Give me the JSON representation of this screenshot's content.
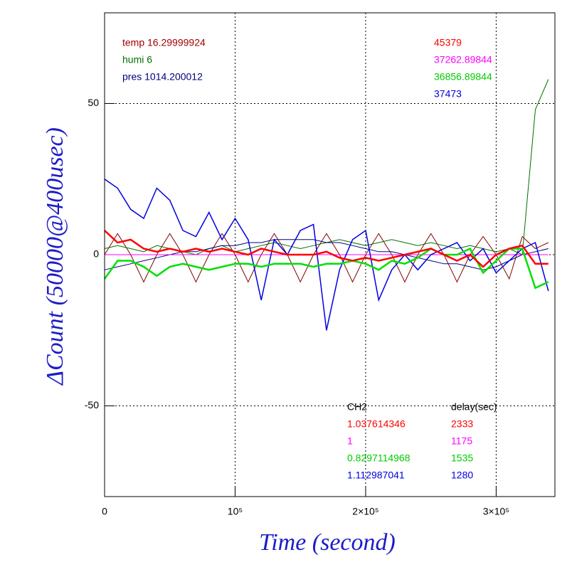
{
  "chart_data": {
    "type": "line",
    "x_label": "Time (second)",
    "y_label": "ΔCount (50000@400usec)",
    "xlim": [
      0,
      345000
    ],
    "ylim": [
      -80,
      80
    ],
    "xticks": [
      0,
      {
        "value": 100000,
        "label": "10⁵"
      },
      {
        "value": 200000,
        "label": "2×10⁵"
      },
      {
        "value": 300000,
        "label": "3×10⁵"
      }
    ],
    "yticks": [
      -50,
      0,
      50
    ],
    "grid": true,
    "x": [
      0,
      10000,
      20000,
      30000,
      40000,
      50000,
      60000,
      70000,
      80000,
      90000,
      100000,
      110000,
      120000,
      130000,
      140000,
      150000,
      160000,
      170000,
      180000,
      190000,
      200000,
      210000,
      220000,
      230000,
      240000,
      250000,
      260000,
      270000,
      280000,
      290000,
      300000,
      310000,
      320000,
      330000,
      340000
    ],
    "series": [
      {
        "color": "#800000",
        "width": 1,
        "values": [
          0,
          7,
          0,
          -9,
          0,
          7,
          0,
          -9,
          0,
          7,
          0,
          -9,
          0,
          7,
          0,
          -9,
          0,
          7,
          0,
          -9,
          0,
          7,
          0,
          -9,
          0,
          7,
          0,
          -9,
          0,
          6,
          0,
          -8,
          6,
          2,
          4
        ]
      },
      {
        "color": "#007000",
        "width": 1,
        "values": [
          2,
          3,
          2,
          1,
          3,
          2,
          1,
          0,
          2,
          3,
          1,
          2,
          3,
          4,
          3,
          2,
          3,
          4,
          5,
          4,
          3,
          4,
          5,
          4,
          3,
          4,
          3,
          2,
          3,
          2,
          1,
          2,
          0,
          48,
          58
        ]
      },
      {
        "color": "#000080",
        "width": 1,
        "values": [
          -5,
          -4,
          -3,
          -2,
          -1,
          0,
          1,
          1,
          2,
          3,
          3,
          4,
          4,
          5,
          5,
          5,
          5,
          4,
          4,
          3,
          2,
          1,
          1,
          0,
          -1,
          -2,
          -3,
          -3,
          -4,
          -5,
          -4,
          -2,
          0,
          1,
          2
        ]
      },
      {
        "color": "#ff00ff",
        "width": 1,
        "values": [
          0,
          0,
          0,
          0,
          0,
          0,
          0,
          0,
          0,
          0,
          0,
          0,
          0,
          0,
          0,
          0,
          0,
          0,
          0,
          0,
          0,
          0,
          0,
          0,
          0,
          0,
          0,
          0,
          0,
          0,
          0,
          0,
          0,
          0,
          0
        ]
      },
      {
        "color": "#0000e0",
        "width": 1.5,
        "values": [
          25,
          22,
          15,
          12,
          22,
          18,
          8,
          6,
          14,
          5,
          12,
          5,
          -15,
          5,
          0,
          8,
          10,
          -25,
          -5,
          5,
          8,
          -15,
          -5,
          0,
          -5,
          0,
          2,
          4,
          -2,
          2,
          -6,
          -2,
          2,
          4,
          -12
        ]
      },
      {
        "color": "#00e000",
        "width": 2.5,
        "values": [
          -8,
          -2,
          -2,
          -4,
          -7,
          -4,
          -3,
          -4,
          -5,
          -4,
          -3,
          -3,
          -4,
          -3,
          -3,
          -3,
          -4,
          -3,
          -3,
          -2,
          -3,
          -5,
          -2,
          -3,
          -1,
          2,
          0,
          0,
          2,
          -6,
          -2,
          2,
          2,
          -11,
          -9
        ]
      },
      {
        "color": "#ff0000",
        "width": 2.5,
        "values": [
          8,
          4,
          5,
          2,
          1,
          2,
          1,
          2,
          1,
          2,
          1,
          0,
          2,
          1,
          0,
          0,
          0,
          1,
          -1,
          -2,
          -1,
          -2,
          -1,
          0,
          1,
          2,
          0,
          -2,
          0,
          -4,
          0,
          2,
          3,
          -3,
          -3
        ]
      }
    ],
    "annotations_left": [
      {
        "text": "temp 16.29999924",
        "color": "#a00000"
      },
      {
        "text": "humi 6",
        "color": "#007000"
      },
      {
        "text": "pres 1014.200012",
        "color": "#000080"
      }
    ],
    "annotations_right": [
      {
        "text": "45379",
        "color": "#ff0000"
      },
      {
        "text": "37262.89844",
        "color": "#ff00ff"
      },
      {
        "text": "36856.89844",
        "color": "#00cc00"
      },
      {
        "text": "37473",
        "color": "#0000e0"
      }
    ],
    "table": {
      "header": [
        "CH2",
        "delay(sec)"
      ],
      "rows": [
        {
          "color": "#ff0000",
          "cells": [
            "1.037614346",
            "2333"
          ]
        },
        {
          "color": "#ff00ff",
          "cells": [
            "1",
            "1175"
          ]
        },
        {
          "color": "#00cc00",
          "cells": [
            "0.8297114968",
            "1535"
          ]
        },
        {
          "color": "#0000e0",
          "cells": [
            "1.112987041",
            "1280"
          ]
        }
      ]
    }
  }
}
